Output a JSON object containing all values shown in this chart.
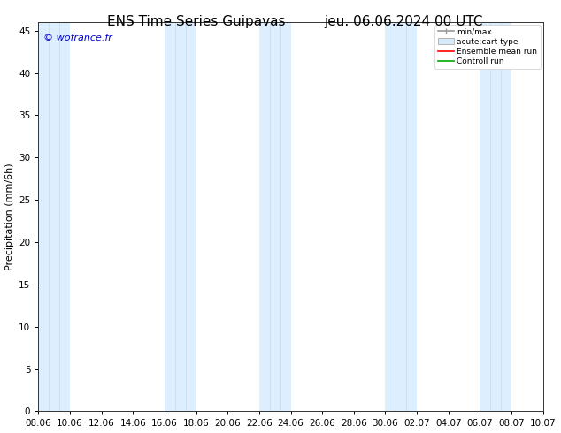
{
  "title_left": "ENS Time Series Guipavas",
  "title_right": "jeu. 06.06.2024 00 UTC",
  "ylabel": "Precipitation (mm/6h)",
  "watermark": "© wofrance.fr",
  "ylim": [
    0,
    46
  ],
  "yticks": [
    0,
    5,
    10,
    15,
    20,
    25,
    30,
    35,
    40,
    45
  ],
  "xtick_labels": [
    "08.06",
    "10.06",
    "12.06",
    "14.06",
    "16.06",
    "18.06",
    "20.06",
    "22.06",
    "24.06",
    "26.06",
    "28.06",
    "30.06",
    "02.07",
    "04.07",
    "06.07",
    "08.07",
    "10.07"
  ],
  "n_xticks": 17,
  "shade_color": "#ddeeff",
  "background_color": "#ffffff",
  "legend_entries": [
    "min/max",
    "acute;cart type",
    "Ensemble mean run",
    "Controll run"
  ],
  "legend_colors": [
    "#aaaaaa",
    "#cce4f5",
    "#ff0000",
    "#00aa00"
  ],
  "title_fontsize": 11,
  "axis_fontsize": 8,
  "tick_fontsize": 7.5,
  "shade_band_indices": [
    0,
    4,
    7,
    11,
    14
  ]
}
